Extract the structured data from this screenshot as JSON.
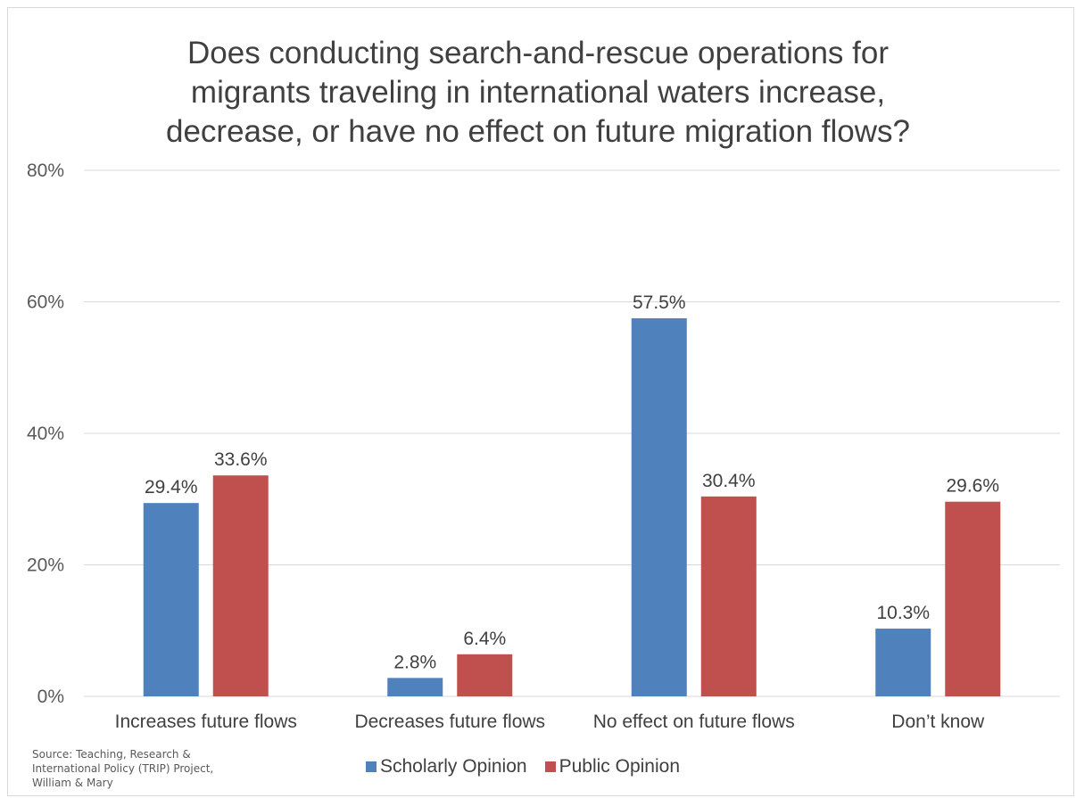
{
  "chart_data": {
    "type": "bar",
    "title_lines": [
      "Does conducting search-and-rescue operations for",
      "migrants traveling in international waters increase,",
      "decrease, or have no effect on future migration flows?"
    ],
    "categories": [
      "Increases future flows",
      "Decreases future flows",
      "No effect on future flows",
      "Don’t know"
    ],
    "series": [
      {
        "name": "Scholarly Opinion",
        "color": "#4f81bd",
        "values": [
          29.4,
          2.8,
          57.5,
          10.3
        ],
        "labels": [
          "29.4%",
          "2.8%",
          "57.5%",
          "10.3%"
        ]
      },
      {
        "name": "Public Opinion",
        "color": "#c0504d",
        "values": [
          33.6,
          6.4,
          30.4,
          29.6
        ],
        "labels": [
          "33.6%",
          "6.4%",
          "30.4%",
          "29.6%"
        ]
      }
    ],
    "ylim": [
      0,
      80
    ],
    "yticks": [
      0,
      20,
      40,
      60,
      80
    ],
    "ytick_labels": [
      "0%",
      "20%",
      "40%",
      "60%",
      "80%"
    ],
    "grid": true,
    "legend_position": "bottom",
    "xlabel": "",
    "ylabel": ""
  },
  "source": {
    "line1": "Source: Teaching, Research &",
    "line2": "International Policy (TRIP) Project,",
    "line3": "William & Mary"
  }
}
